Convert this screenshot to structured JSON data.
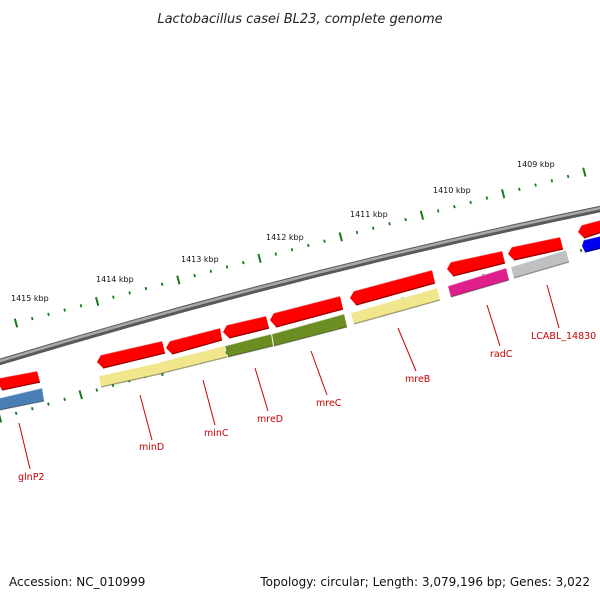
{
  "title": "Lactobacillus casei BL23, complete genome",
  "footer": {
    "accession": "Accession: NC_010999",
    "summary": "Topology: circular; Length: 3,079,196 bp; Genes: 3,022"
  },
  "scale_ticks": [
    {
      "label": "1409 kbp"
    },
    {
      "label": "1410 kbp"
    },
    {
      "label": "1411 kbp"
    },
    {
      "label": "1412 kbp"
    },
    {
      "label": "1413 kbp"
    },
    {
      "label": "1414 kbp"
    },
    {
      "label": "1415 kbp"
    }
  ],
  "genes": [
    {
      "name": "glnP2",
      "color": "#4a7fb5"
    },
    {
      "name": "minD",
      "color": "#f0e68c"
    },
    {
      "name": "minC",
      "color": "#f0e68c"
    },
    {
      "name": "mreD",
      "color": "#6b8e23"
    },
    {
      "name": "mreC",
      "color": "#6b8e23"
    },
    {
      "name": "mreB",
      "color": "#f0e68c"
    },
    {
      "name": "radC",
      "color": "#e0208a"
    },
    {
      "name": "LCABL_14830",
      "color": "#c0c0c0"
    }
  ],
  "colors": {
    "cds_strand": "#ff0000",
    "backbone": "#808080",
    "tick_marks": "#1a7a1a",
    "gene_labels": "#cc0000",
    "blue_feature": "#0000ee"
  }
}
